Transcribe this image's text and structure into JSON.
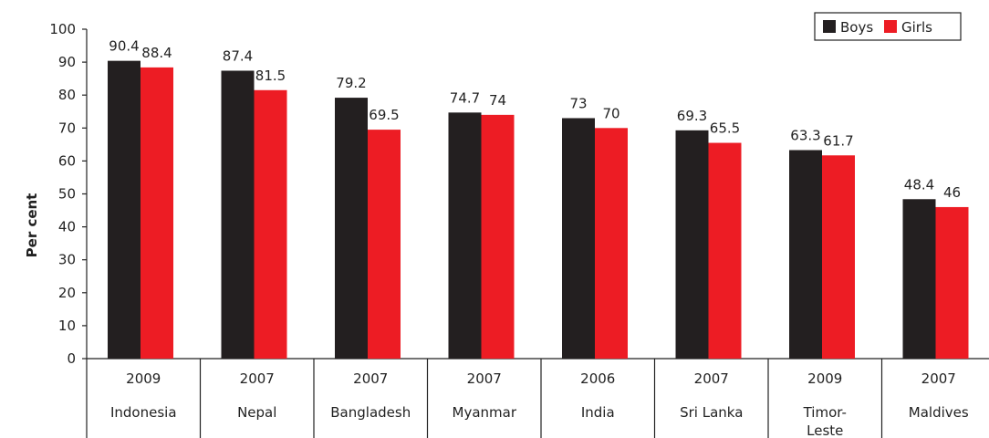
{
  "chart_data": {
    "type": "bar",
    "title": "",
    "xlabel": "",
    "ylabel": "Per cent",
    "ylim": [
      0,
      100
    ],
    "yticks": [
      0,
      10,
      20,
      30,
      40,
      50,
      60,
      70,
      80,
      90,
      100
    ],
    "grid": false,
    "legend_position": "top-right",
    "categories": [
      {
        "year": "2009",
        "country": [
          "Indonesia"
        ]
      },
      {
        "year": "2007",
        "country": [
          "Nepal"
        ]
      },
      {
        "year": "2007",
        "country": [
          "Bangladesh"
        ]
      },
      {
        "year": "2007",
        "country": [
          "Myanmar"
        ]
      },
      {
        "year": "2006",
        "country": [
          "India"
        ]
      },
      {
        "year": "2007",
        "country": [
          "Sri Lanka"
        ]
      },
      {
        "year": "2009",
        "country": [
          "Timor-",
          "Leste"
        ]
      },
      {
        "year": "2007",
        "country": [
          "Maldives"
        ]
      }
    ],
    "series": [
      {
        "name": "Boys",
        "color": "#231f20",
        "values": [
          90.4,
          87.4,
          79.2,
          74.7,
          73,
          69.3,
          63.3,
          48.4
        ]
      },
      {
        "name": "Girls",
        "color": "#ed1c24",
        "values": [
          88.4,
          81.5,
          69.5,
          74,
          70,
          65.5,
          61.7,
          46
        ]
      }
    ]
  }
}
